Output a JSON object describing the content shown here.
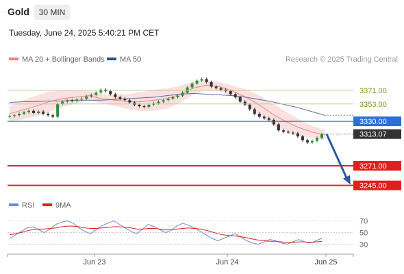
{
  "header": {
    "title": "Gold",
    "timeframe": "30 MIN",
    "datetime": "Tuesday, June 24, 2025 5:40:21 PM CET"
  },
  "legend": {
    "items": [
      {
        "label": "MA 20 + Bollinger Bands",
        "color": "#f08080"
      },
      {
        "label": "MA 50",
        "color": "#2c4f8c"
      }
    ],
    "research": "Research © 2025 Trading Central"
  },
  "rsi_legend": {
    "items": [
      {
        "label": "RSI",
        "color": "#6b8cd6"
      },
      {
        "label": "9MA",
        "color": "#e02020"
      }
    ]
  },
  "chart_data": [
    {
      "type": "line",
      "title": "",
      "price_lines": [
        {
          "value": 3371.0,
          "label": "3371.00",
          "style": "green-line"
        },
        {
          "value": 3353.0,
          "label": "3353.00",
          "style": "green-line"
        },
        {
          "value": 3330.0,
          "label": "3330.00",
          "style": "blue-box"
        },
        {
          "value": 3313.07,
          "label": "3313.07",
          "style": "dark-box"
        },
        {
          "value": 3271.0,
          "label": "3271.00",
          "style": "red-box"
        },
        {
          "value": 3245.0,
          "label": "3245.00",
          "style": "red-box"
        }
      ],
      "x_ticks": [
        "Jun 23",
        "Jun 24",
        "Jun 25"
      ],
      "close_series": [
        3337,
        3338,
        3340,
        3342,
        3344,
        3341,
        3343,
        3340,
        3338,
        3336,
        3353,
        3356,
        3358,
        3357,
        3359,
        3360,
        3363,
        3365,
        3368,
        3372,
        3370,
        3366,
        3362,
        3360,
        3358,
        3355,
        3352,
        3350,
        3349,
        3352,
        3354,
        3356,
        3358,
        3360,
        3362,
        3364,
        3368,
        3375,
        3380,
        3384,
        3386,
        3382,
        3376,
        3374,
        3372,
        3370,
        3366,
        3362,
        3356,
        3352,
        3346,
        3340,
        3336,
        3334,
        3332,
        3326,
        3318,
        3316,
        3315,
        3314,
        3310,
        3305,
        3302,
        3304,
        3308,
        3313
      ],
      "ma50": [
        3355,
        3356,
        3356,
        3357,
        3357,
        3358,
        3358,
        3358,
        3359,
        3360,
        3361,
        3362,
        3364,
        3366,
        3367,
        3366,
        3365,
        3364,
        3362,
        3359,
        3356,
        3352,
        3348,
        3343,
        3338
      ],
      "bollinger_mid": [
        3340,
        3345,
        3350,
        3356,
        3360,
        3362,
        3364,
        3360,
        3358,
        3356,
        3356,
        3358,
        3360,
        3366,
        3374,
        3378,
        3376,
        3370,
        3362,
        3352,
        3340,
        3330,
        3322,
        3316,
        3312
      ],
      "ylim": [
        3232,
        3400
      ]
    },
    {
      "type": "line",
      "title": "",
      "series": [
        {
          "name": "RSI",
          "values": [
            40,
            46,
            52,
            58,
            60,
            55,
            50,
            56,
            64,
            68,
            70,
            66,
            58,
            52,
            48,
            55,
            62,
            66,
            70,
            64,
            58,
            52,
            48,
            56,
            64,
            60,
            55,
            50,
            54,
            62,
            66,
            62,
            58,
            52,
            46,
            40,
            36,
            40,
            44,
            48,
            42,
            36,
            32,
            30,
            34,
            38,
            36,
            32,
            30,
            34,
            38,
            34,
            32,
            36,
            40
          ]
        },
        {
          "name": "9MA",
          "values": [
            46,
            48,
            50,
            53,
            55,
            56,
            56,
            57,
            58,
            60,
            61,
            61,
            60,
            58,
            57,
            57,
            58,
            59,
            60,
            60,
            59,
            58,
            56,
            56,
            57,
            57,
            56,
            55,
            55,
            56,
            57,
            58,
            57,
            56,
            54,
            51,
            48,
            46,
            45,
            44,
            43,
            41,
            39,
            37,
            36,
            35,
            35,
            34,
            33,
            33,
            34,
            34,
            33,
            34,
            35
          ]
        }
      ],
      "y_ticks": [
        "70",
        "50",
        "30"
      ],
      "ylim": [
        20,
        80
      ]
    }
  ]
}
